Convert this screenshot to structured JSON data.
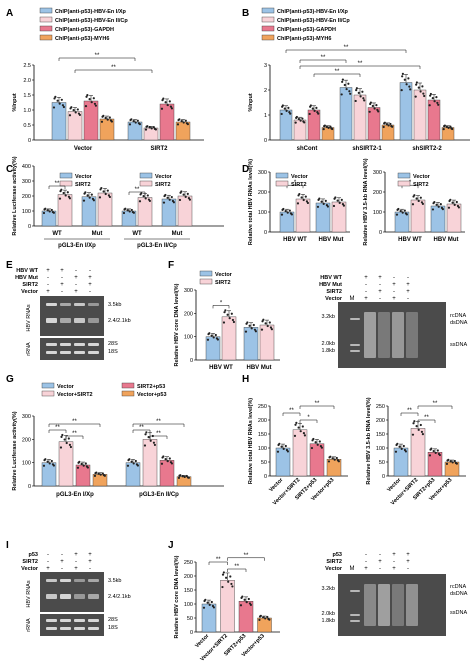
{
  "colors": {
    "blue": "#9cc3e6",
    "pink": "#f4b6c2",
    "red": "#e8788e",
    "orange": "#f0a35c",
    "lightpink": "#f8d3d8",
    "darkred": "#d9534f",
    "gel_bg": "#4b4b4b",
    "gel_band": "#e6e6e6",
    "white": "#ffffff"
  },
  "panels": {
    "A": {
      "letter": "A",
      "ylabel": "%Input",
      "ylim": [
        0,
        2.5
      ],
      "yticks": [
        "0",
        "0.5",
        "1.0",
        "1.5",
        "2.0",
        "2.5"
      ],
      "legend": [
        "ChIP(anti-p53)-HBV-En I/Xp",
        "ChIP(anti-p53)-HBV-En II/Cp",
        "ChIP(anti-p53)-GAPDH",
        "ChIP(anti-p53)-MYH6"
      ],
      "groups": [
        "Vector",
        "SIRT2"
      ],
      "sig": [
        "**",
        "**"
      ],
      "chart_data": {
        "type": "bar",
        "categories": [
          "Vector",
          "SIRT2"
        ],
        "series": [
          {
            "name": "ChIP(anti-p53)-HBV-En I/Xp",
            "values": [
              1.25,
              0.6
            ]
          },
          {
            "name": "ChIP(anti-p53)-HBV-En II/Cp",
            "values": [
              0.95,
              0.4
            ]
          },
          {
            "name": "ChIP(anti-p53)-GAPDH",
            "values": [
              1.3,
              1.2
            ]
          },
          {
            "name": "ChIP(anti-p53)-MYH6",
            "values": [
              0.7,
              0.6
            ]
          }
        ],
        "ylabel": "%Input",
        "ylim": [
          0,
          2.5
        ]
      }
    },
    "B": {
      "letter": "B",
      "ylabel": "%Input",
      "ylim": [
        0,
        3
      ],
      "yticks": [
        "0",
        "1",
        "2",
        "3"
      ],
      "legend": [
        "ChIP(anti-p53)-HBV-En I/Xp",
        "ChIP(anti-p53)-HBV-En II/Cp",
        "ChIP(anti-p53)-GAPDH",
        "ChIP(anti-p53)-MYH6"
      ],
      "groups": [
        "shCont",
        "shSIRT2-1",
        "shSIRT2-2"
      ],
      "sig": [
        "**",
        "**",
        "**",
        "**"
      ],
      "chart_data": {
        "type": "bar",
        "categories": [
          "shCont",
          "shSIRT2-1",
          "shSIRT2-2"
        ],
        "series": [
          {
            "name": "ChIP(anti-p53)-HBV-En I/Xp",
            "values": [
              1.2,
              2.1,
              2.3
            ]
          },
          {
            "name": "ChIP(anti-p53)-HBV-En II/Cp",
            "values": [
              0.8,
              1.8,
              2.0
            ]
          },
          {
            "name": "ChIP(anti-p53)-GAPDH",
            "values": [
              1.2,
              1.3,
              1.6
            ]
          },
          {
            "name": "ChIP(anti-p53)-MYH6",
            "values": [
              0.5,
              0.6,
              0.5
            ]
          }
        ],
        "ylabel": "%Input",
        "ylim": [
          0,
          3
        ]
      }
    },
    "C": {
      "letter": "C",
      "ylabel": "Relative Luciferase activity(%)",
      "yticks": [
        "0",
        "100",
        "200",
        "300",
        "400"
      ],
      "legend": [
        "Vector",
        "SIRT2"
      ],
      "subgroups": [
        "WT",
        "Mut",
        "WT",
        "Mut"
      ],
      "groups": [
        "pGL3-En I/Xp",
        "pGL3-En II/Cp"
      ],
      "sig": [
        "**",
        "**"
      ],
      "chart_data": {
        "type": "bar",
        "categories": [
          "pGL3-En I/Xp WT",
          "pGL3-En I/Xp Mut",
          "pGL3-En II/Cp WT",
          "pGL3-En II/Cp Mut"
        ],
        "series": [
          {
            "name": "Vector",
            "values": [
              100,
              195,
              100,
              180
            ]
          },
          {
            "name": "SIRT2",
            "values": [
              210,
              220,
              190,
              200
            ]
          }
        ],
        "ylabel": "Relative Luciferase activity(%)",
        "ylim": [
          0,
          400
        ]
      }
    },
    "D1": {
      "letter": "D",
      "ylabel": "Relative total HBV RNAs level(%)",
      "yticks": [
        "0",
        "100",
        "200",
        "300"
      ],
      "legend": [
        "Vector",
        "SIRT2"
      ],
      "groups": [
        "HBV WT",
        "HBV Mut"
      ],
      "sig": [
        "*"
      ],
      "chart_data": {
        "type": "bar",
        "categories": [
          "HBV WT",
          "HBV Mut"
        ],
        "series": [
          {
            "name": "Vector",
            "values": [
              100,
              145
            ]
          },
          {
            "name": "SIRT2",
            "values": [
              165,
              150
            ]
          }
        ],
        "ylabel": "Relative total HBV RNAs level(%)",
        "ylim": [
          0,
          300
        ]
      }
    },
    "D2": {
      "ylabel": "Relative HBV 3.5-kb RNA level(%)",
      "yticks": [
        "0",
        "100",
        "200",
        "300"
      ],
      "legend": [
        "Vector",
        "SIRT2"
      ],
      "groups": [
        "HBV WT",
        "HBV Mut"
      ],
      "sig": [
        "*"
      ],
      "chart_data": {
        "type": "bar",
        "categories": [
          "HBV WT",
          "HBV Mut"
        ],
        "series": [
          {
            "name": "Vector",
            "values": [
              100,
              130
            ]
          },
          {
            "name": "SIRT2",
            "values": [
              160,
              140
            ]
          }
        ],
        "ylabel": "Relative HBV 3.5-kb RNA level(%)",
        "ylim": [
          0,
          300
        ]
      }
    },
    "E": {
      "letter": "E",
      "rows": [
        "HBV WT",
        "HBV Mut",
        "SIRT2",
        "Vector"
      ],
      "marks": [
        [
          "+",
          "+",
          "-",
          "-"
        ],
        [
          "-",
          "-",
          "+",
          "+"
        ],
        [
          "-",
          "+",
          "-",
          "+"
        ],
        [
          "+",
          "-",
          "+",
          "-"
        ]
      ],
      "side": [
        "HBV RNAs",
        "rRNA"
      ],
      "bands": [
        "3.5kb",
        "2.4/2.1kb",
        "28S",
        "18S"
      ]
    },
    "F": {
      "letter": "F",
      "ylabel": "Relative HBV core DNA level(%)",
      "yticks": [
        "0",
        "100",
        "200",
        "300"
      ],
      "legend": [
        "Vector",
        "SIRT2"
      ],
      "groups": [
        "HBV WT",
        "HBV Mut"
      ],
      "sig": [
        "*"
      ],
      "chart_data": {
        "type": "bar",
        "categories": [
          "HBV WT",
          "HBV Mut"
        ],
        "series": [
          {
            "name": "Vector",
            "values": [
              100,
              140
            ]
          },
          {
            "name": "SIRT2",
            "values": [
              185,
              150
            ]
          }
        ],
        "ylabel": "Relative HBV core DNA level(%)",
        "ylim": [
          0,
          300
        ]
      }
    },
    "Fgel": {
      "rows": [
        "HBV WT",
        "HBV Mut",
        "SIRT2",
        "Vector"
      ],
      "marks": [
        [
          "",
          "+",
          "+",
          "-",
          "-"
        ],
        [
          "",
          "-",
          "-",
          "+",
          "+"
        ],
        [
          "",
          "-",
          "+",
          "-",
          "+"
        ],
        [
          "M",
          "+",
          "-",
          "+",
          "-"
        ]
      ],
      "markers": [
        "3.2kb",
        "2.0kb",
        "1.8kb"
      ],
      "bands": [
        "rcDNA",
        "dsDNA",
        "ssDNA"
      ]
    },
    "G": {
      "letter": "G",
      "ylabel": "Relative Luciferase activity(%)",
      "yticks": [
        "0",
        "100",
        "200",
        "300"
      ],
      "legend": [
        "Vector",
        "Vector+SIRT2",
        "SIRT2+p53",
        "Vector+p53"
      ],
      "groups": [
        "pGL3-En I/Xp",
        "pGL3-En II/Cp"
      ],
      "sig": [
        "**",
        "**",
        "**",
        "**",
        "**",
        "**"
      ],
      "chart_data": {
        "type": "bar",
        "categories": [
          "pGL3-En I/Xp",
          "pGL3-En II/Cp"
        ],
        "series": [
          {
            "name": "Vector",
            "values": [
              100,
              100
            ]
          },
          {
            "name": "Vector+SIRT2",
            "values": [
              190,
              200
            ]
          },
          {
            "name": "SIRT2+p53",
            "values": [
              90,
              110
            ]
          },
          {
            "name": "Vector+p53",
            "values": [
              50,
              40
            ]
          }
        ],
        "ylabel": "Relative Luciferase activity(%)",
        "ylim": [
          0,
          300
        ]
      }
    },
    "H1": {
      "letter": "H",
      "ylabel": "Relative total HBV RNAs level(%)",
      "yticks": [
        "0",
        "50",
        "100",
        "150",
        "200",
        "250"
      ],
      "cats": [
        "Vector",
        "Vector+SIRT2",
        "SIRT2+p53",
        "Vector+p53"
      ],
      "sig": [
        "**",
        "*",
        "**"
      ],
      "chart_data": {
        "type": "bar",
        "categories": [
          "Vector",
          "Vector+SIRT2",
          "SIRT2+p53",
          "Vector+p53"
        ],
        "values": [
          100,
          165,
          115,
          60
        ],
        "ylabel": "Relative total HBV RNAs level(%)",
        "ylim": [
          0,
          250
        ]
      }
    },
    "H2": {
      "ylabel": "Relative HBV 3.5-kb RNA level(%)",
      "yticks": [
        "0",
        "50",
        "100",
        "150",
        "200",
        "250"
      ],
      "cats": [
        "Vector",
        "Vector+SIRT2",
        "SIRT2+p53",
        "Vector+p53"
      ],
      "sig": [
        "**",
        "**",
        "**"
      ],
      "chart_data": {
        "type": "bar",
        "categories": [
          "Vector",
          "Vector+SIRT2",
          "SIRT2+p53",
          "Vector+p53"
        ],
        "values": [
          100,
          170,
          85,
          50
        ],
        "ylabel": "Relative HBV 3.5-kb RNA level(%)",
        "ylim": [
          0,
          250
        ]
      }
    },
    "I": {
      "letter": "I",
      "rows": [
        "p53",
        "SIRT2",
        "Vector"
      ],
      "marks": [
        [
          "-",
          "-",
          "+",
          "+"
        ],
        [
          "-",
          "+",
          "-",
          "+"
        ],
        [
          "+",
          "-",
          "+",
          "-"
        ]
      ],
      "side": [
        "HBV RNAs",
        "rRNA"
      ],
      "bands": [
        "3.5kb",
        "2.4/2.1kb",
        "28S",
        "18S"
      ]
    },
    "J": {
      "letter": "J",
      "ylabel": "Relative HBV core DNA level(%)",
      "yticks": [
        "0",
        "50",
        "100",
        "150",
        "200",
        "250"
      ],
      "cats": [
        "Vector",
        "Vector+SIRT2",
        "SIRT2+p53",
        "Vector+p53"
      ],
      "sig": [
        "**",
        "**",
        "**"
      ],
      "chart_data": {
        "type": "bar",
        "categories": [
          "Vector",
          "Vector+SIRT2",
          "SIRT2+p53",
          "Vector+p53"
        ],
        "values": [
          100,
          185,
          110,
          50
        ],
        "ylabel": "Relative HBV core DNA level(%)",
        "ylim": [
          0,
          250
        ]
      }
    },
    "Jgel": {
      "rows": [
        "p53",
        "SIRT2",
        "Vector"
      ],
      "marks": [
        [
          "",
          "-",
          "-",
          "+",
          "+"
        ],
        [
          "",
          "-",
          "+",
          "-",
          "+"
        ],
        [
          "M",
          "+",
          "-",
          "+",
          "-"
        ]
      ],
      "markers": [
        "3.2kb",
        "2.0kb",
        "1.8kb"
      ],
      "bands": [
        "rcDNA",
        "dsDNA",
        "ssDNA"
      ]
    }
  }
}
